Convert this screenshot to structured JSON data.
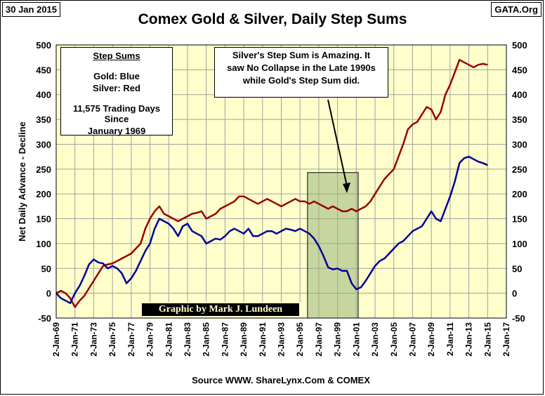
{
  "header": {
    "date": "30 Jan 2015",
    "source_tag": "GATA.Org",
    "title": "Comex Gold & Silver, Daily Step Sums"
  },
  "legend_box": {
    "heading": "Step Sums",
    "gold": "Gold: Blue",
    "silver": "Silver: Red",
    "days_line1": "11,575 Trading Days Since",
    "days_line2": "January 1969"
  },
  "note_box": {
    "line1": "Silver's Step Sum is Amazing.  It",
    "line2": "saw No Collapse in the Late 1990s",
    "line3": "while Gold's Step Sum did."
  },
  "credit": "Graphic by Mark J. Lundeen",
  "colors": {
    "plot_bg": "#ffffcc",
    "gold_line": "#000099",
    "silver_line": "#990000",
    "highlight": "#99b27a",
    "grid": "#a0a0a0"
  },
  "chart_data": {
    "type": "line",
    "title": "Comex Gold & Silver, Daily Step Sums",
    "xlabel": "Source WWW. ShareLynx.Com & COMEX",
    "ylabel": "Net Daily Advance - Decline",
    "ylim": [
      -50,
      500
    ],
    "xlim": [
      1969.0,
      2017.0
    ],
    "y_ticks": [
      -50,
      0,
      50,
      100,
      150,
      200,
      250,
      300,
      350,
      400,
      450,
      500
    ],
    "x_ticks": [
      "2-Jan-69",
      "2-Jan-71",
      "2-Jan-73",
      "2-Jan-75",
      "2-Jan-77",
      "2-Jan-79",
      "2-Jan-81",
      "2-Jan-83",
      "2-Jan-85",
      "2-Jan-87",
      "2-Jan-89",
      "2-Jan-91",
      "2-Jan-93",
      "2-Jan-95",
      "2-Jan-97",
      "2-Jan-99",
      "2-Jan-01",
      "2-Jan-03",
      "2-Jan-05",
      "2-Jan-07",
      "2-Jan-09",
      "2-Jan-11",
      "2-Jan-13",
      "2-Jan-15",
      "2-Jan-17"
    ],
    "grid": true,
    "highlight_region": {
      "x_start": 1995.8,
      "x_end": 2001.2,
      "y_low": -50,
      "y_high": 243
    },
    "series": [
      {
        "name": "Gold",
        "color": "#000099",
        "x": [
          1969.0,
          1969.5,
          1970.0,
          1970.5,
          1971.0,
          1971.5,
          1972.0,
          1972.5,
          1973.0,
          1973.5,
          1974.0,
          1974.5,
          1975.0,
          1975.5,
          1976.0,
          1976.5,
          1977.0,
          1977.5,
          1978.0,
          1978.5,
          1979.0,
          1979.5,
          1980.0,
          1980.5,
          1981.0,
          1981.5,
          1982.0,
          1982.5,
          1983.0,
          1983.5,
          1984.0,
          1984.5,
          1985.0,
          1985.5,
          1986.0,
          1986.5,
          1987.0,
          1987.5,
          1988.0,
          1988.5,
          1989.0,
          1989.5,
          1990.0,
          1990.5,
          1991.0,
          1991.5,
          1992.0,
          1992.5,
          1993.0,
          1993.5,
          1994.0,
          1994.5,
          1995.0,
          1995.5,
          1996.0,
          1996.5,
          1997.0,
          1997.5,
          1998.0,
          1998.5,
          1999.0,
          1999.5,
          2000.0,
          2000.5,
          2001.0,
          2001.5,
          2002.0,
          2002.5,
          2003.0,
          2003.5,
          2004.0,
          2004.5,
          2005.0,
          2005.5,
          2006.0,
          2006.5,
          2007.0,
          2007.5,
          2008.0,
          2008.5,
          2009.0,
          2009.5,
          2010.0,
          2010.5,
          2011.0,
          2011.5,
          2012.0,
          2012.5,
          2013.0,
          2013.5,
          2014.0,
          2014.5,
          2015.0
        ],
        "values": [
          0,
          -10,
          -15,
          -20,
          0,
          15,
          35,
          58,
          68,
          62,
          60,
          50,
          55,
          50,
          40,
          20,
          30,
          45,
          65,
          85,
          100,
          130,
          150,
          145,
          140,
          130,
          115,
          135,
          140,
          125,
          120,
          115,
          100,
          105,
          110,
          108,
          115,
          125,
          130,
          125,
          120,
          130,
          115,
          115,
          120,
          125,
          125,
          120,
          125,
          130,
          128,
          125,
          130,
          125,
          120,
          110,
          95,
          75,
          52,
          48,
          50,
          45,
          45,
          20,
          8,
          12,
          25,
          40,
          55,
          65,
          70,
          80,
          90,
          100,
          105,
          115,
          125,
          130,
          135,
          150,
          165,
          150,
          145,
          170,
          195,
          225,
          262,
          272,
          275,
          270,
          265,
          262,
          258
        ]
      },
      {
        "name": "Silver",
        "color": "#990000",
        "x": [
          1969.0,
          1969.5,
          1970.0,
          1970.5,
          1971.0,
          1971.5,
          1972.0,
          1972.5,
          1973.0,
          1973.5,
          1974.0,
          1974.5,
          1975.0,
          1975.5,
          1976.0,
          1976.5,
          1977.0,
          1977.5,
          1978.0,
          1978.5,
          1979.0,
          1979.5,
          1980.0,
          1980.5,
          1981.0,
          1981.5,
          1982.0,
          1982.5,
          1983.0,
          1983.5,
          1984.0,
          1984.5,
          1985.0,
          1985.5,
          1986.0,
          1986.5,
          1987.0,
          1987.5,
          1988.0,
          1988.5,
          1989.0,
          1989.5,
          1990.0,
          1990.5,
          1991.0,
          1991.5,
          1992.0,
          1992.5,
          1993.0,
          1993.5,
          1994.0,
          1994.5,
          1995.0,
          1995.5,
          1996.0,
          1996.5,
          1997.0,
          1997.5,
          1998.0,
          1998.5,
          1999.0,
          1999.5,
          2000.0,
          2000.5,
          2001.0,
          2001.5,
          2002.0,
          2002.5,
          2003.0,
          2003.5,
          2004.0,
          2004.5,
          2005.0,
          2005.5,
          2006.0,
          2006.5,
          2007.0,
          2007.5,
          2008.0,
          2008.5,
          2009.0,
          2009.5,
          2010.0,
          2010.5,
          2011.0,
          2011.5,
          2012.0,
          2012.5,
          2013.0,
          2013.5,
          2014.0,
          2014.5,
          2015.0
        ],
        "values": [
          0,
          5,
          0,
          -10,
          -28,
          -15,
          -5,
          10,
          25,
          40,
          55,
          58,
          60,
          65,
          70,
          75,
          80,
          90,
          100,
          130,
          150,
          165,
          175,
          160,
          155,
          150,
          145,
          150,
          155,
          160,
          162,
          165,
          150,
          155,
          160,
          170,
          175,
          180,
          185,
          195,
          195,
          190,
          185,
          180,
          185,
          190,
          185,
          180,
          175,
          180,
          185,
          190,
          185,
          185,
          180,
          185,
          180,
          175,
          170,
          175,
          170,
          165,
          165,
          170,
          165,
          170,
          175,
          185,
          200,
          215,
          230,
          240,
          250,
          275,
          300,
          330,
          340,
          345,
          360,
          375,
          370,
          350,
          365,
          400,
          420,
          445,
          470,
          465,
          460,
          455,
          460,
          462,
          460
        ]
      }
    ]
  }
}
